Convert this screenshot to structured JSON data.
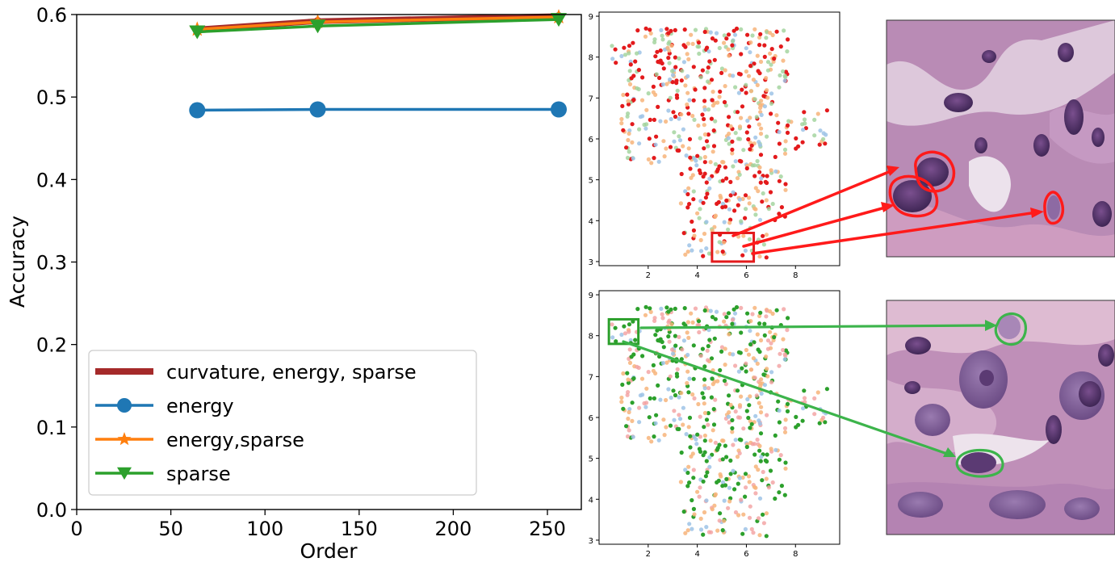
{
  "chart_data": [
    {
      "type": "line",
      "xlabel": "Order",
      "ylabel": "Accuracy",
      "xlim": [
        0,
        268
      ],
      "ylim": [
        0.0,
        0.6
      ],
      "xticks": [
        "0",
        "50",
        "100",
        "150",
        "200",
        "250"
      ],
      "yticks": [
        "0.0",
        "0.1",
        "0.2",
        "0.3",
        "0.4",
        "0.5",
        "0.6"
      ],
      "grid": false,
      "legend_position": "lower-left",
      "x": [
        64,
        128,
        256
      ],
      "series": [
        {
          "name": "curvature, energy, sparse",
          "values": [
            0.582,
            0.592,
            0.598
          ],
          "color": "#a52a2a",
          "marker": "dot"
        },
        {
          "name": "energy",
          "values": [
            0.484,
            0.485,
            0.485
          ],
          "color": "#1f77b4",
          "marker": "circle"
        },
        {
          "name": "energy,sparse",
          "values": [
            0.582,
            0.591,
            0.597
          ],
          "color": "#ff7f0e",
          "marker": "star"
        },
        {
          "name": "sparse",
          "values": [
            0.579,
            0.586,
            0.594
          ],
          "color": "#2ca02c",
          "marker": "triangle-down"
        }
      ]
    },
    {
      "type": "scatter",
      "xticks": [
        "2",
        "4",
        "6",
        "8"
      ],
      "yticks": [
        "3",
        "4",
        "5",
        "6",
        "7",
        "8",
        "9"
      ],
      "xlim": [
        0,
        9.8
      ],
      "ylim": [
        2.9,
        9.1
      ],
      "highlight_color": "#e31a1c",
      "highlight_box": {
        "x": [
          4.6,
          6.3
        ],
        "y": [
          3.0,
          3.7
        ]
      },
      "palette": [
        "#e31a1c",
        "#f7b47a",
        "#9fd29a",
        "#9ec3e6"
      ]
    },
    {
      "type": "scatter",
      "xticks": [
        "2",
        "4",
        "6",
        "8"
      ],
      "yticks": [
        "3",
        "4",
        "5",
        "6",
        "7",
        "8",
        "9"
      ],
      "xlim": [
        0,
        9.8
      ],
      "ylim": [
        2.9,
        9.1
      ],
      "highlight_color": "#2ca02c",
      "highlight_box": {
        "x": [
          0.4,
          1.6
        ],
        "y": [
          7.8,
          8.4
        ]
      },
      "palette": [
        "#2ca02c",
        "#f7b47a",
        "#f2a0a0",
        "#9ec3e6"
      ]
    }
  ],
  "images": {
    "top": {
      "kind": "histology-patch",
      "annotation_color": "#e31a1c"
    },
    "bottom": {
      "kind": "histology-patch",
      "annotation_color": "#3cb44b"
    }
  }
}
